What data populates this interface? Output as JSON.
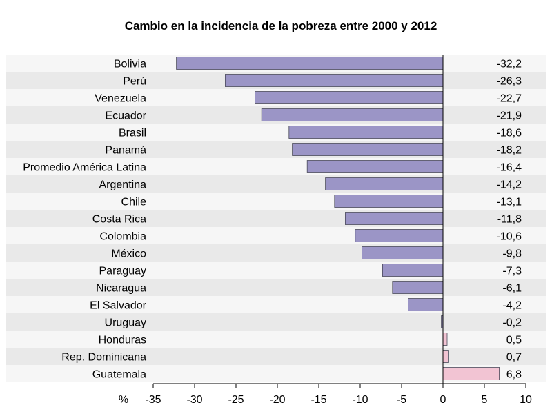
{
  "chart_data": {
    "type": "bar",
    "orientation": "horizontal",
    "title": "Cambio en la incidencia de la pobreza entre 2000 y 2012",
    "xlabel": "%",
    "xlim": [
      -35,
      10
    ],
    "xticks": [
      -35,
      -30,
      -25,
      -20,
      -15,
      -10,
      -5,
      0,
      5,
      10
    ],
    "categories": [
      "Bolivia",
      "Perú",
      "Venezuela",
      "Ecuador",
      "Brasil",
      "Panamá",
      "Promedio América Latina",
      "Argentina",
      "Chile",
      "Costa Rica",
      "Colombia",
      "México",
      "Paraguay",
      "Nicaragua",
      "El Salvador",
      "Uruguay",
      "Honduras",
      "Rep. Dominicana",
      "Guatemala"
    ],
    "values": [
      -32.2,
      -26.3,
      -22.7,
      -21.9,
      -18.6,
      -18.2,
      -16.4,
      -14.2,
      -13.1,
      -11.8,
      -10.6,
      -9.8,
      -7.3,
      -6.1,
      -4.2,
      -0.2,
      0.5,
      0.7,
      6.8
    ],
    "value_labels": [
      "-32,2",
      "-26,3",
      "-22,7",
      "-21,9",
      "-18,6",
      "-18,2",
      "-16,4",
      "-14,2",
      "-13,1",
      "-11,8",
      "-10,6",
      "-9,8",
      "-7,3",
      "-6,1",
      "-4,2",
      "-0,2",
      "0,5",
      "0,7",
      "6,8"
    ],
    "tick_labels": [
      "-35",
      "-30",
      "-25",
      "-20",
      "-15",
      "-10",
      "-5",
      "0",
      "5",
      "10"
    ],
    "colors": {
      "negative_bar": "#9b95c6",
      "positive_bar": "#f2c4d3",
      "bar_stroke": "#4a4a5a",
      "row_light": "#f6f6f6",
      "row_dark": "#e9e9e9"
    },
    "grid": false,
    "legend": "none"
  }
}
